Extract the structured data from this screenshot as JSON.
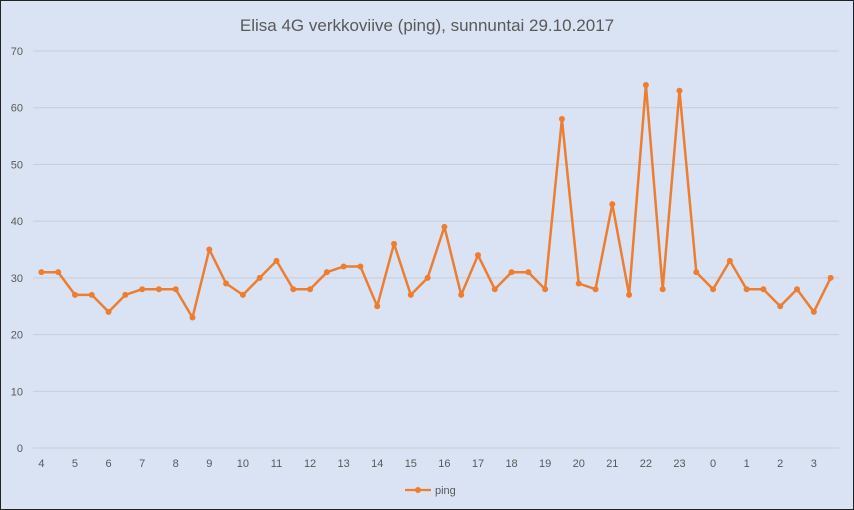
{
  "chart_data": {
    "type": "line",
    "title": "Elisa 4G verkkoviive (ping), sunnuntai 29.10.2017",
    "xlabel": "",
    "ylabel": "",
    "ylim": [
      0,
      70
    ],
    "yticks": [
      0,
      10,
      20,
      30,
      40,
      50,
      60,
      70
    ],
    "grid": true,
    "legend_position": "bottom",
    "color": "#ed7d31",
    "categories": [
      "4",
      "",
      "5",
      "",
      "6",
      "",
      "7",
      "",
      "8",
      "",
      "9",
      "",
      "10",
      "",
      "11",
      "",
      "12",
      "",
      "13",
      "",
      "14",
      "",
      "15",
      "",
      "16",
      "",
      "17",
      "",
      "18",
      "",
      "19",
      "",
      "20",
      "",
      "21",
      "",
      "22",
      "",
      "23",
      "",
      "0",
      "",
      "1",
      "",
      "2",
      "",
      "3",
      ""
    ],
    "series": [
      {
        "name": "ping",
        "values": [
          31,
          31,
          27,
          27,
          24,
          27,
          28,
          28,
          28,
          23,
          35,
          29,
          27,
          30,
          33,
          28,
          28,
          31,
          32,
          32,
          25,
          36,
          27,
          30,
          39,
          27,
          34,
          28,
          31,
          31,
          28,
          58,
          29,
          28,
          43,
          27,
          64,
          28,
          63,
          31,
          28,
          33,
          28,
          28,
          25,
          28,
          24,
          30
        ]
      }
    ]
  }
}
